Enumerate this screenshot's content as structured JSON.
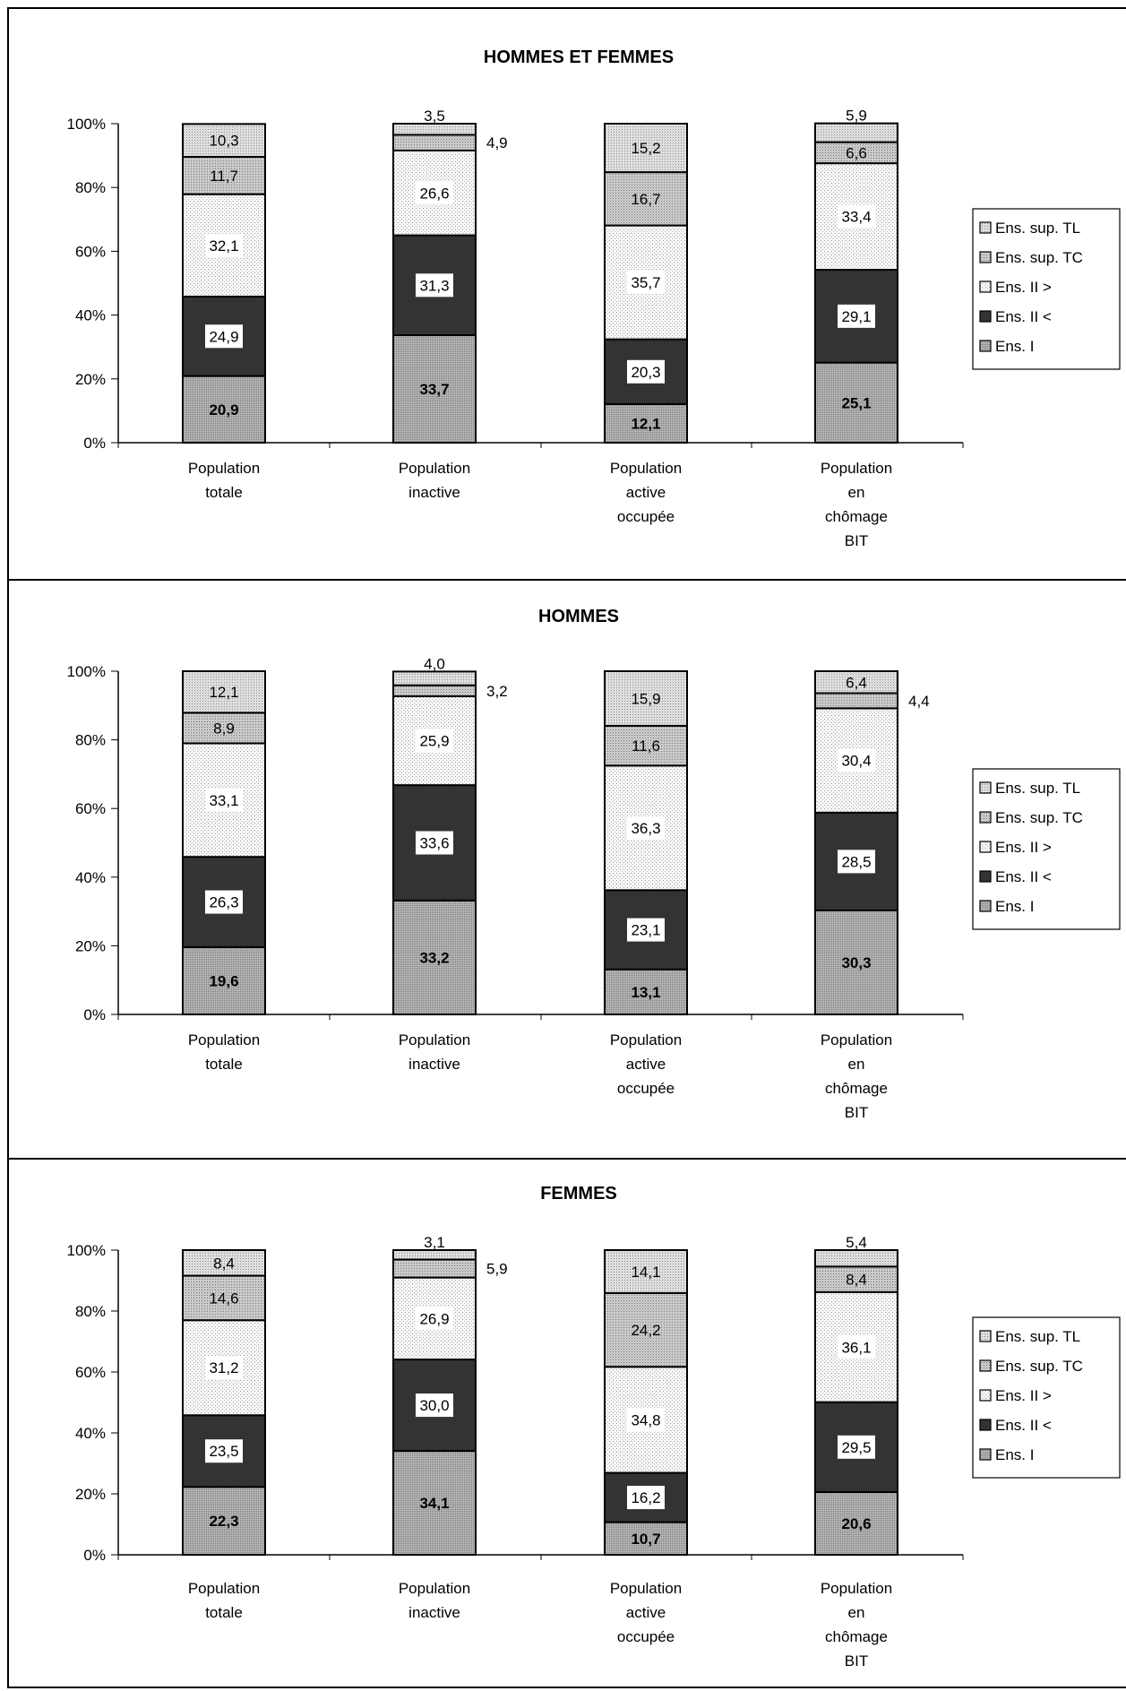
{
  "chart_data": [
    {
      "type": "bar",
      "stacked": true,
      "title": "HOMMES ET FEMMES",
      "categories": [
        [
          "Population",
          "totale"
        ],
        [
          "Population",
          "inactive"
        ],
        [
          "Population",
          "active",
          "occupée"
        ],
        [
          "Population",
          "en",
          "chômage",
          "BIT"
        ]
      ],
      "ylim": [
        0,
        100
      ],
      "yticks": [
        "0%",
        "20%",
        "40%",
        "60%",
        "80%",
        "100%"
      ],
      "legend_position": "right",
      "series": [
        {
          "name": "Ens. I",
          "values": [
            20.9,
            33.7,
            12.1,
            25.1
          ]
        },
        {
          "name": "Ens. II <",
          "values": [
            24.9,
            31.3,
            20.3,
            29.1
          ]
        },
        {
          "name": "Ens. II >",
          "values": [
            32.1,
            26.6,
            35.7,
            33.4
          ]
        },
        {
          "name": "Ens. sup. TC",
          "values": [
            11.7,
            4.9,
            16.7,
            6.6
          ]
        },
        {
          "name": "Ens. sup. TL",
          "values": [
            10.3,
            3.5,
            15.2,
            5.9
          ]
        }
      ],
      "labels": [
        [
          "20,9",
          "33,7",
          "12,1",
          "25,1"
        ],
        [
          "24,9",
          "31,3",
          "20,3",
          "29,1"
        ],
        [
          "32,1",
          "26,6",
          "35,7",
          "33,4"
        ],
        [
          "11,7",
          "4,9",
          "16,7",
          "6,6"
        ],
        [
          "10,3",
          "3,5",
          "15,2",
          "5,9"
        ]
      ],
      "legend": [
        "Ens. sup. TL",
        "Ens. sup. TC",
        "Ens. II >",
        "Ens. II <",
        "Ens. I"
      ],
      "grid": false
    },
    {
      "type": "bar",
      "stacked": true,
      "title": "HOMMES",
      "categories": [
        [
          "Population",
          "totale"
        ],
        [
          "Population",
          "inactive"
        ],
        [
          "Population",
          "active",
          "occupée"
        ],
        [
          "Population",
          "en",
          "chômage",
          "BIT"
        ]
      ],
      "ylim": [
        0,
        100
      ],
      "yticks": [
        "0%",
        "20%",
        "40%",
        "60%",
        "80%",
        "100%"
      ],
      "legend_position": "right",
      "series": [
        {
          "name": "Ens. I",
          "values": [
            19.6,
            33.2,
            13.1,
            30.3
          ]
        },
        {
          "name": "Ens. II <",
          "values": [
            26.3,
            33.6,
            23.1,
            28.5
          ]
        },
        {
          "name": "Ens. II >",
          "values": [
            33.1,
            25.9,
            36.3,
            30.4
          ]
        },
        {
          "name": "Ens. sup. TC",
          "values": [
            8.9,
            3.2,
            11.6,
            4.4
          ]
        },
        {
          "name": "Ens. sup. TL",
          "values": [
            12.1,
            4.0,
            15.9,
            6.4
          ]
        }
      ],
      "labels": [
        [
          "19,6",
          "33,2",
          "13,1",
          "30,3"
        ],
        [
          "26,3",
          "33,6",
          "23,1",
          "28,5"
        ],
        [
          "33,1",
          "25,9",
          "36,3",
          "30,4"
        ],
        [
          "8,9",
          "3,2",
          "11,6",
          "4,4"
        ],
        [
          "12,1",
          "4,0",
          "15,9",
          "6,4"
        ]
      ],
      "legend": [
        "Ens. sup. TL",
        "Ens. sup. TC",
        "Ens. II >",
        "Ens. II <",
        "Ens. I"
      ],
      "grid": false
    },
    {
      "type": "bar",
      "stacked": true,
      "title": "FEMMES",
      "categories": [
        [
          "Population",
          "totale"
        ],
        [
          "Population",
          "inactive"
        ],
        [
          "Population",
          "active",
          "occupée"
        ],
        [
          "Population",
          "en",
          "chômage",
          "BIT"
        ]
      ],
      "ylim": [
        0,
        100
      ],
      "yticks": [
        "0%",
        "20%",
        "40%",
        "60%",
        "80%",
        "100%"
      ],
      "legend_position": "right",
      "series": [
        {
          "name": "Ens. I",
          "values": [
            22.3,
            34.1,
            10.7,
            20.6
          ]
        },
        {
          "name": "Ens. II <",
          "values": [
            23.5,
            30.0,
            16.2,
            29.5
          ]
        },
        {
          "name": "Ens. II >",
          "values": [
            31.2,
            26.9,
            34.8,
            36.1
          ]
        },
        {
          "name": "Ens. sup. TC",
          "values": [
            14.6,
            5.9,
            24.2,
            8.4
          ]
        },
        {
          "name": "Ens. sup. TL",
          "values": [
            8.4,
            3.1,
            14.1,
            5.4
          ]
        }
      ],
      "labels": [
        [
          "22,3",
          "34,1",
          "10,7",
          "20,6"
        ],
        [
          "23,5",
          "30,0",
          "16,2",
          "29,5"
        ],
        [
          "31,2",
          "26,9",
          "34,8",
          "36,1"
        ],
        [
          "14,6",
          "5,9",
          "24,2",
          "8,4"
        ],
        [
          "8,4",
          "3,1",
          "14,1",
          "5,4"
        ]
      ],
      "legend": [
        "Ens. sup. TL",
        "Ens. sup. TC",
        "Ens. II >",
        "Ens. II <",
        "Ens. I"
      ],
      "grid": false
    }
  ]
}
